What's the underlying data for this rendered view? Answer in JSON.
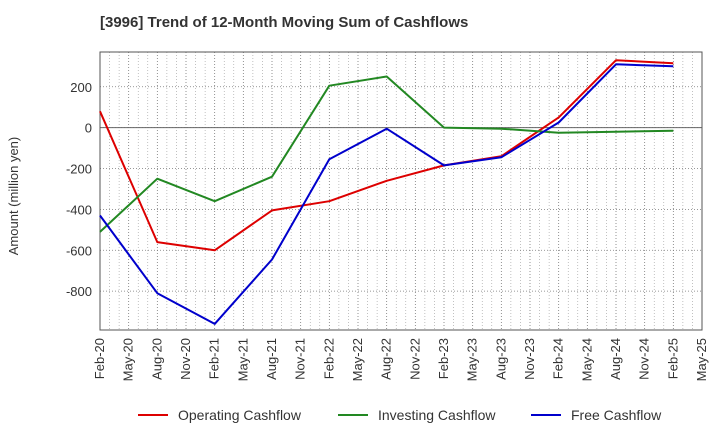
{
  "chart_data": {
    "type": "line",
    "title": "[3996]  Trend of 12-Month Moving Sum of Cashflows",
    "ylabel": "Amount (million yen)",
    "xlabel": "",
    "x_ticks": [
      "Feb-20",
      "May-20",
      "Aug-20",
      "Nov-20",
      "Feb-21",
      "May-21",
      "Aug-21",
      "Nov-21",
      "Feb-22",
      "May-22",
      "Aug-22",
      "Nov-22",
      "Feb-23",
      "May-23",
      "Aug-23",
      "Nov-23",
      "Feb-24",
      "May-24",
      "Aug-24",
      "Nov-24",
      "Feb-25",
      "May-25"
    ],
    "y_ticks": [
      200,
      0,
      -200,
      -400,
      -600,
      -800
    ],
    "ylim": [
      -990,
      370
    ],
    "grid": true,
    "legend_position": "bottom",
    "series": [
      {
        "name": "Operating Cashflow",
        "color": "#dd0000",
        "x": [
          "Feb-20",
          "Aug-20",
          "Feb-21",
          "Aug-21",
          "Feb-22",
          "Aug-22",
          "Feb-23",
          "Aug-23",
          "Feb-24",
          "Aug-24",
          "Feb-25"
        ],
        "values": [
          80,
          -560,
          -600,
          -405,
          -360,
          -260,
          -185,
          -140,
          50,
          330,
          315
        ]
      },
      {
        "name": "Investing Cashflow",
        "color": "#228822",
        "x": [
          "Feb-20",
          "Aug-20",
          "Feb-21",
          "Aug-21",
          "Feb-22",
          "Aug-22",
          "Feb-23",
          "Aug-23",
          "Feb-24",
          "Aug-24",
          "Feb-25"
        ],
        "values": [
          -510,
          -250,
          -360,
          -240,
          205,
          250,
          0,
          -5,
          -25,
          -20,
          -15
        ]
      },
      {
        "name": "Free Cashflow",
        "color": "#0000cc",
        "x": [
          "Feb-20",
          "Aug-20",
          "Feb-21",
          "Aug-21",
          "Feb-22",
          "Aug-22",
          "Feb-23",
          "Aug-23",
          "Feb-24",
          "Aug-24",
          "Feb-25"
        ],
        "values": [
          -430,
          -810,
          -960,
          -645,
          -155,
          -5,
          -185,
          -145,
          25,
          310,
          300
        ]
      }
    ]
  }
}
